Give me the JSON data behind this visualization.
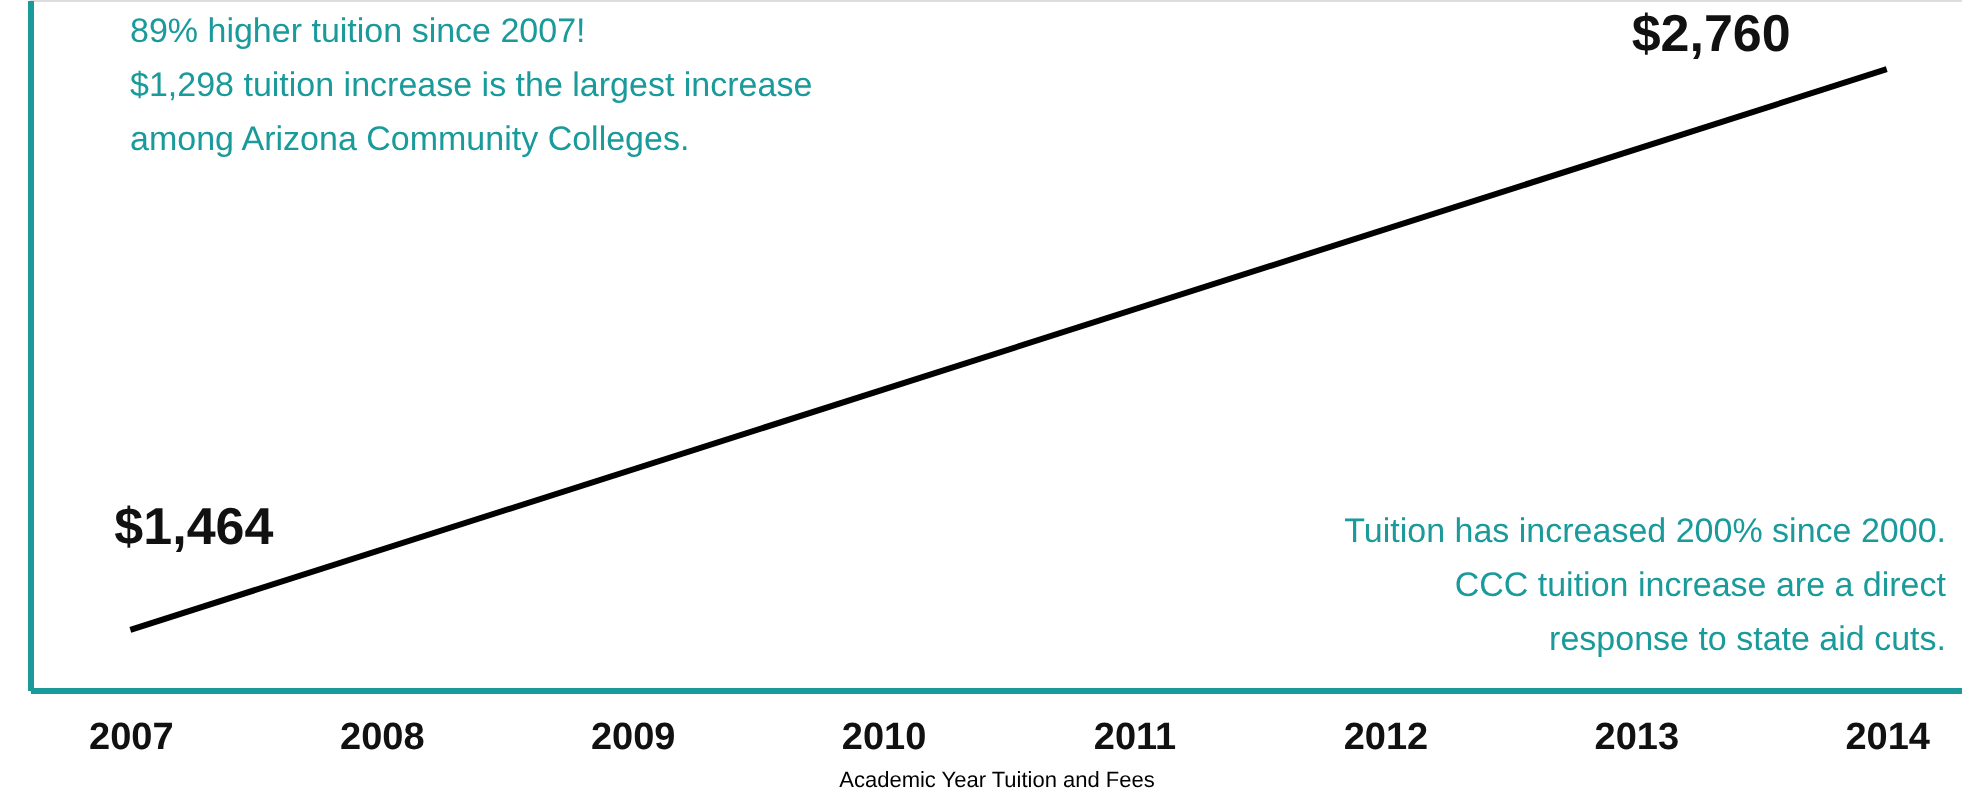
{
  "chart_data": {
    "type": "line",
    "x": [
      2007,
      2014
    ],
    "xlim": [
      2006.6,
      2014.3
    ],
    "xticks": [
      2007,
      2008,
      2009,
      2010,
      2011,
      2012,
      2013,
      2014
    ],
    "tick_labels": "x",
    "xlabel": "Academic Year Tuition and Fees",
    "series": [
      {
        "color": "#000000",
        "values": [
          1464,
          2760
        ],
        "value_labels": [
          "$1,464",
          "$2,760"
        ]
      }
    ],
    "annotations": [
      "89% higher tuition since 2007!\n$1,298 tuition increase is the largest increase\namong Arizona Community Colleges.",
      "Tuition has increased 200% since 2000.\nCCC tuition increase are a direct\nresponse to state aid cuts."
    ],
    "ylim": [
      1325,
      2920
    ],
    "grid": false,
    "marker": "none",
    "line_style": "solid"
  }
}
